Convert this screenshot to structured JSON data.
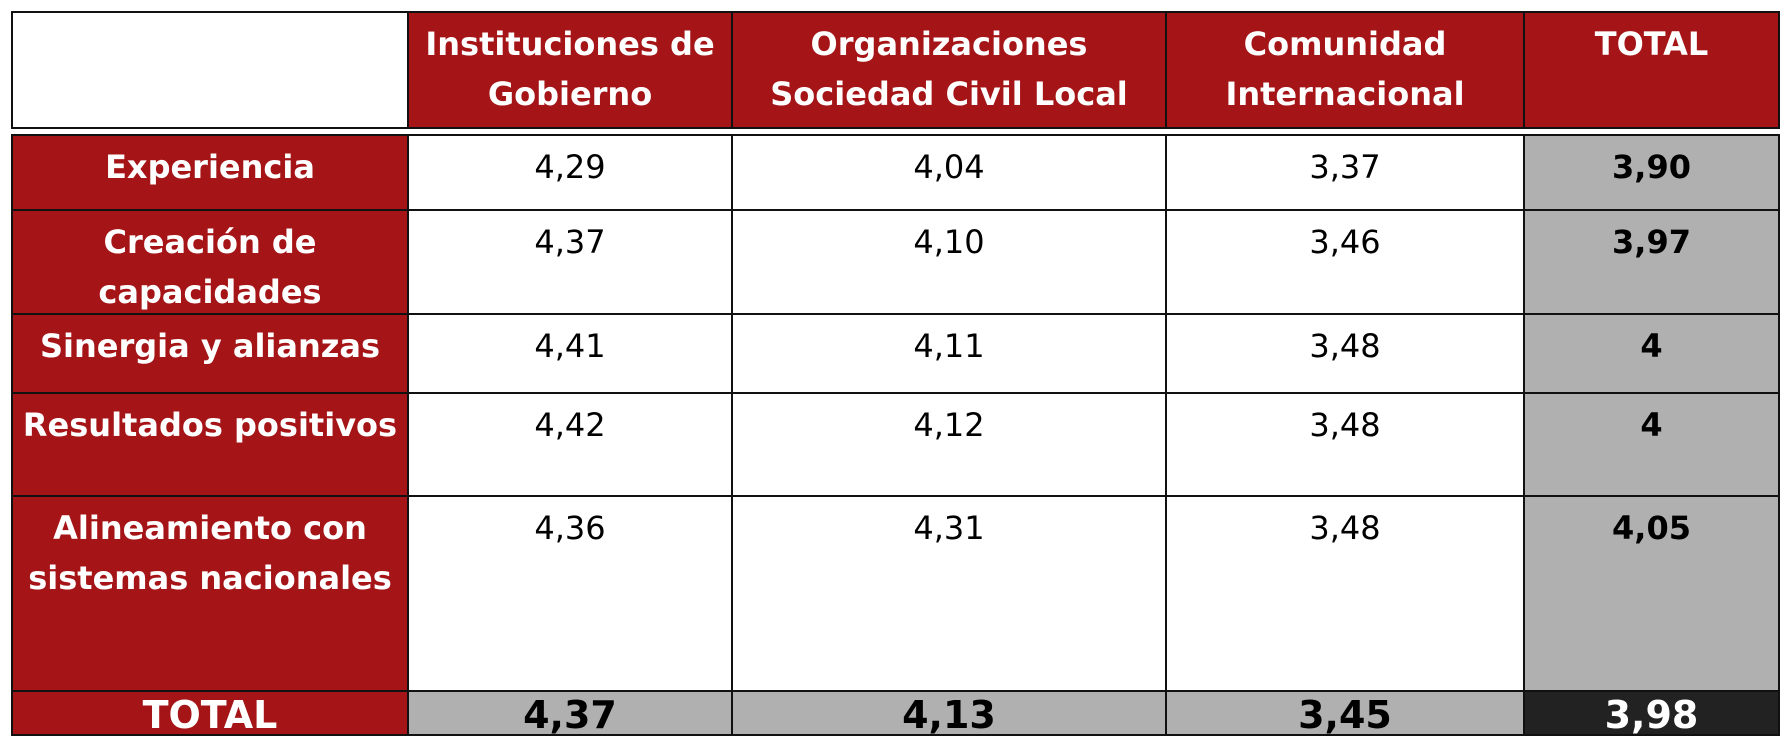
{
  "table": {
    "header": [
      "Instituciones de Gobierno",
      "Organizaciones Sociedad Civil Local",
      "Comunidad Internacional",
      "TOTAL"
    ],
    "rows": [
      {
        "label": "Experiencia",
        "cells": [
          "4,29",
          "4,04",
          "3,37",
          "3,90"
        ]
      },
      {
        "label": "Creación de capacidades",
        "cells": [
          "4,37",
          "4,10",
          "3,46",
          "3,97"
        ]
      },
      {
        "label": "Sinergia y alianzas",
        "cells": [
          "4,41",
          "4,11",
          "3,48",
          "4"
        ]
      },
      {
        "label": "Resultados positivos",
        "cells": [
          "4,42",
          "4,12",
          "3,48",
          "4"
        ]
      },
      {
        "label": "Alineamiento con sistemas nacionales",
        "cells": [
          "4,36",
          "4,31",
          "3,48",
          "4,05"
        ]
      }
    ],
    "total": {
      "label": "TOTAL",
      "cells": [
        "4,37",
        "4,13",
        "3,45",
        "3,98"
      ]
    }
  }
}
